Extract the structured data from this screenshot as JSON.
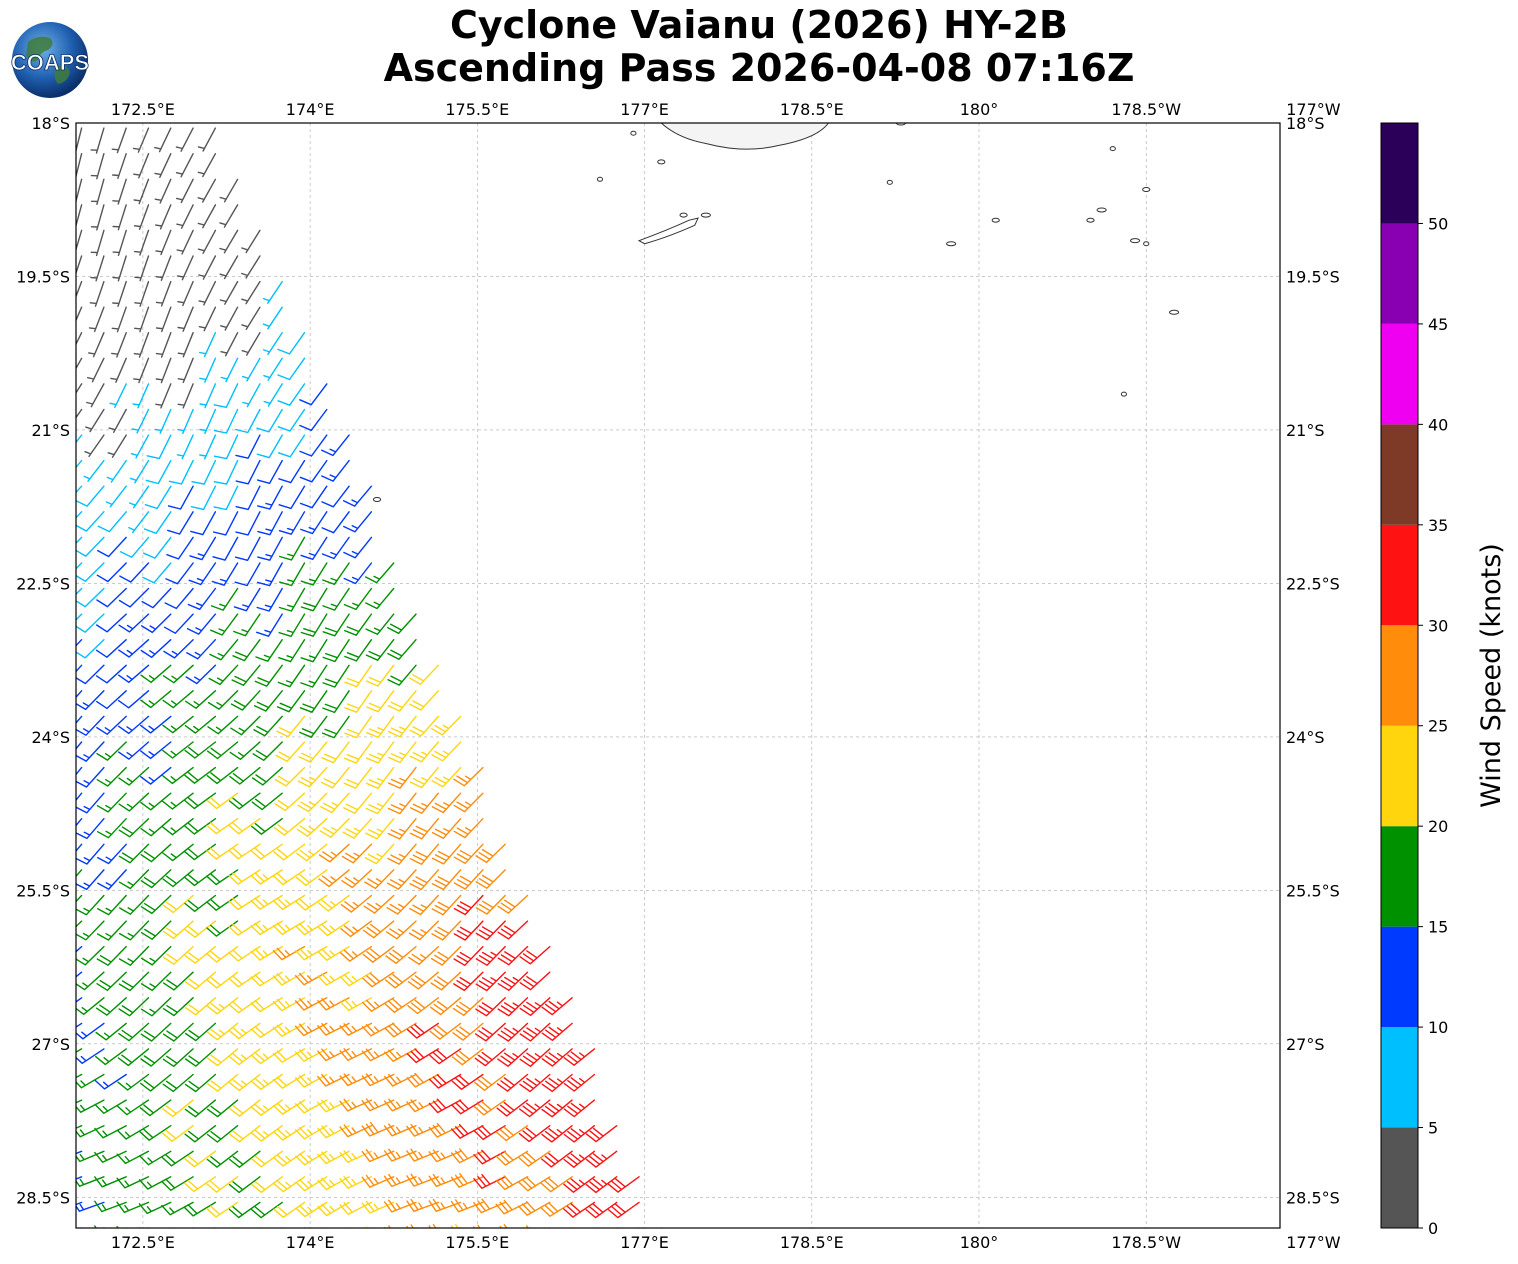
{
  "title": {
    "line1": "Cyclone Vaianu (2026) HY-2B",
    "line2": "Ascending Pass 2026-04-08 07:16Z"
  },
  "logo": {
    "text": "COAPS",
    "icon": "globe-icon"
  },
  "map": {
    "lon_range": [
      171.9,
      -177.3
    ],
    "lat_range": [
      -28.8,
      -18
    ],
    "lon_ticks": [
      {
        "value": 172.5,
        "label": "172.5°E"
      },
      {
        "value": 174,
        "label": "174°E"
      },
      {
        "value": 175.5,
        "label": "175.5°E"
      },
      {
        "value": 177,
        "label": "177°E"
      },
      {
        "value": 178.5,
        "label": "178.5°E"
      },
      {
        "value": 180,
        "label": "180°"
      },
      {
        "value": 181.5,
        "label": "178.5°W"
      },
      {
        "value": 183,
        "label": "177°W"
      }
    ],
    "lat_ticks": [
      {
        "value": -18,
        "label": "18°S"
      },
      {
        "value": -19.5,
        "label": "19.5°S"
      },
      {
        "value": -21,
        "label": "21°S"
      },
      {
        "value": -22.5,
        "label": "22.5°S"
      },
      {
        "value": -24,
        "label": "24°S"
      },
      {
        "value": -25.5,
        "label": "25.5°S"
      },
      {
        "value": -27,
        "label": "27°S"
      },
      {
        "value": -28.5,
        "label": "28.5°S"
      }
    ],
    "gridlines": true,
    "swath_edge": {
      "top_east_lon": 173.2,
      "cut_start": {
        "lon": 174.0,
        "lat": -20.0
      },
      "bottom_east": {
        "lon": 177.2,
        "lat": -28.8
      }
    },
    "islands": [
      {
        "name": "Viti Levu",
        "lon": 177.9,
        "lat": -18.1
      },
      {
        "name": "Kadavu",
        "lon": 178.3,
        "lat": -19.05
      },
      {
        "name": "Lau islands",
        "lon": 180.2,
        "lat": -18.8
      }
    ]
  },
  "colorbar": {
    "label": "Wind Speed (knots)",
    "ticks": [
      "0",
      "5",
      "10",
      "15",
      "20",
      "25",
      "30",
      "35",
      "40",
      "45",
      "50"
    ],
    "bins": [
      {
        "from": 0,
        "to": 5,
        "color": "#555555"
      },
      {
        "from": 5,
        "to": 10,
        "color": "#00bfff"
      },
      {
        "from": 10,
        "to": 15,
        "color": "#0039ff"
      },
      {
        "from": 15,
        "to": 20,
        "color": "#009100"
      },
      {
        "from": 20,
        "to": 25,
        "color": "#ffd60e"
      },
      {
        "from": 25,
        "to": 30,
        "color": "#ff8c0a"
      },
      {
        "from": 30,
        "to": 35,
        "color": "#ff1212"
      },
      {
        "from": 35,
        "to": 40,
        "color": "#7f3a27"
      },
      {
        "from": 40,
        "to": 45,
        "color": "#f000f0"
      },
      {
        "from": 45,
        "to": 50,
        "color": "#8900b3"
      },
      {
        "from": 50,
        "to": 55,
        "color": "#2a0058"
      }
    ]
  },
  "wind_field": {
    "type": "barbs",
    "center": {
      "lon": 177.9,
      "lat": -26.6
    },
    "row_step_deg": 0.25,
    "col_step_deg": 0.2
  }
}
